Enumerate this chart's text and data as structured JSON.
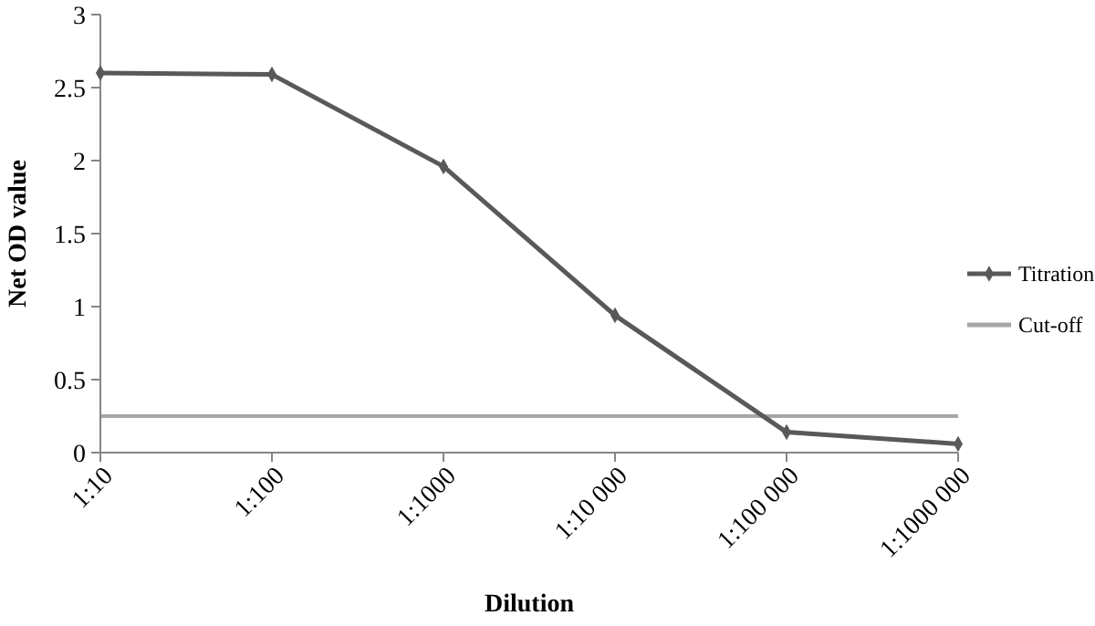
{
  "chart_data": {
    "type": "line",
    "xlabel": "Dilution",
    "ylabel": "Net OD value",
    "categories": [
      "1:10",
      "1:100",
      "1:1000",
      "1:10 000",
      "1:100 000",
      "1:1000 000"
    ],
    "series": [
      {
        "name": "Titration",
        "color": "#595959",
        "values": [
          2.6,
          2.59,
          1.96,
          0.94,
          0.14,
          0.06
        ]
      }
    ],
    "ref_lines": [
      {
        "axis": "y",
        "value": 0.25,
        "label": "Cut-off",
        "color": "#a6a6a6"
      }
    ],
    "ylim": [
      0,
      3
    ],
    "yticks": [
      0,
      0.5,
      1,
      1.5,
      2,
      2.5,
      3
    ],
    "grid": false,
    "legend": "right",
    "marker": "diamond",
    "line_style": "solid"
  }
}
